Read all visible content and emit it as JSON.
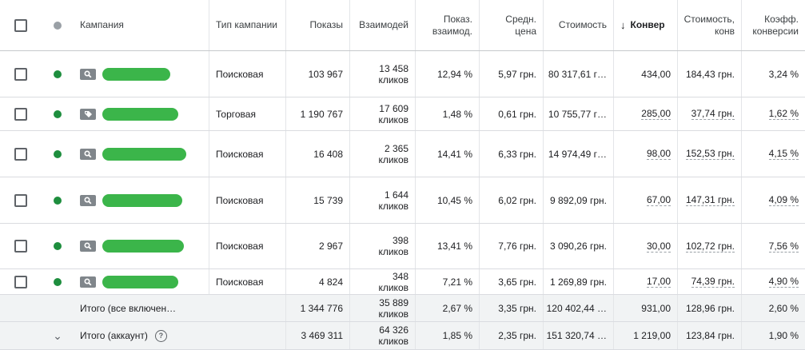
{
  "columns": {
    "campaign": "Кампания",
    "type": "Тип кампании",
    "impressions": "Показы",
    "interactions": "Взаимодей",
    "interaction_rate": "Показ. взаимод.",
    "avg_cost": "Средн. цена",
    "cost": "Стоимость",
    "sort_arrow": "↓",
    "conversions": "Конвер",
    "cost_per_conv": "Стоимость, конв",
    "conv_rate": "Коэфф. конверсии"
  },
  "rows": [
    {
      "icon": "search-icon",
      "type": "Поисковая",
      "impressions": "103 967",
      "int_count": "13 458",
      "int_unit": "кликов",
      "rate": "12,94 %",
      "avg": "5,97 грн.",
      "cost": "80 317,61 г…",
      "conv": "434,00",
      "cpc": "184,43 грн.",
      "cr": "3,24 %"
    },
    {
      "icon": "tag-icon",
      "type": "Торговая",
      "impressions": "1 190 767",
      "int_count": "17 609",
      "int_unit": "кликов",
      "rate": "1,48 %",
      "avg": "0,61 грн.",
      "cost": "10 755,77 г…",
      "conv": "285,00",
      "cpc": "37,74 грн.",
      "cr": "1,62 %"
    },
    {
      "icon": "search-icon",
      "type": "Поисковая",
      "impressions": "16 408",
      "int_count": "2 365",
      "int_unit": "кликов",
      "rate": "14,41 %",
      "avg": "6,33 грн.",
      "cost": "14 974,49 г…",
      "conv": "98,00",
      "cpc": "152,53 грн.",
      "cr": "4,15 %"
    },
    {
      "icon": "search-icon",
      "type": "Поисковая",
      "impressions": "15 739",
      "int_count": "1 644",
      "int_unit": "кликов",
      "rate": "10,45 %",
      "avg": "6,02 грн.",
      "cost": "9 892,09 грн.",
      "conv": "67,00",
      "cpc": "147,31 грн.",
      "cr": "4,09 %"
    },
    {
      "icon": "search-icon",
      "type": "Поисковая",
      "impressions": "2 967",
      "int_count": "398",
      "int_unit": "кликов",
      "rate": "13,41 %",
      "avg": "7,76 грн.",
      "cost": "3 090,26 грн.",
      "conv": "30,00",
      "cpc": "102,72 грн.",
      "cr": "7,56 %"
    },
    {
      "icon": "search-icon",
      "type": "Поисковая",
      "impressions": "4 824",
      "int_count": "348",
      "int_unit": "кликов",
      "rate": "7,21 %",
      "avg": "3,65 грн.",
      "cost": "1 269,89 грн.",
      "conv": "17,00",
      "cpc": "74,39 грн.",
      "cr": "4,90 %"
    }
  ],
  "totals": [
    {
      "label": "Итого (все включен…",
      "impressions": "1 344 776",
      "int_count": "35 889",
      "int_unit": "кликов",
      "rate": "2,67 %",
      "avg": "3,35 грн.",
      "cost": "120 402,44 …",
      "conv": "931,00",
      "cpc": "128,96 грн.",
      "cr": "2,60 %"
    },
    {
      "label": "Итого (аккаунт)",
      "impressions": "3 469 311",
      "int_count": "64 326",
      "int_unit": "кликов",
      "rate": "1,85 %",
      "avg": "2,35 грн.",
      "cost": "151 320,74 …",
      "conv": "1 219,00",
      "cpc": "123,84 грн.",
      "cr": "1,90 %"
    }
  ],
  "help_glyph": "?",
  "chevron_glyph": "⌄"
}
